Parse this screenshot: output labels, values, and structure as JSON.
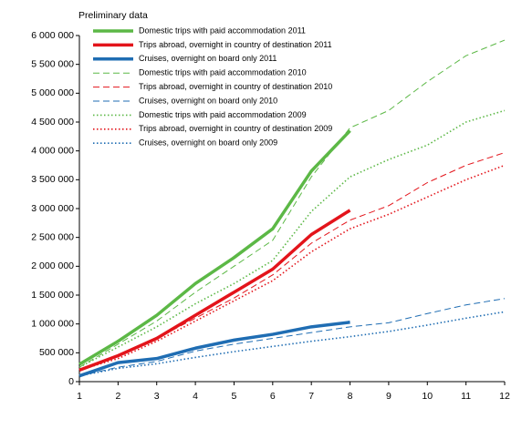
{
  "chart_data": {
    "type": "line",
    "title": "Preliminary data",
    "x": [
      1,
      2,
      3,
      4,
      5,
      6,
      7,
      8,
      9,
      10,
      11,
      12
    ],
    "xlim": [
      1,
      12
    ],
    "xticks": [
      1,
      2,
      3,
      4,
      5,
      6,
      7,
      8,
      9,
      10,
      11,
      12
    ],
    "ylim": [
      0,
      6000000
    ],
    "yticks": [
      0,
      {
        "value": 500000,
        "label": "500 000"
      },
      {
        "value": 1000000,
        "label": "1 000 000"
      },
      {
        "value": 1500000,
        "label": "1 500 000"
      },
      {
        "value": 2000000,
        "label": "2 000 000"
      },
      {
        "value": 2500000,
        "label": "2 500 000"
      },
      {
        "value": 3000000,
        "label": "3 000 000"
      },
      {
        "value": 3500000,
        "label": "3 500 000"
      },
      {
        "value": 4000000,
        "label": "4 000 000"
      },
      {
        "value": 4500000,
        "label": "4 500 000"
      },
      {
        "value": 5000000,
        "label": "5 000 000"
      },
      {
        "value": 5500000,
        "label": "5 500 000"
      },
      {
        "value": 6000000,
        "label": "6 000 000"
      }
    ],
    "grid": false,
    "legend": "upper left",
    "series": [
      {
        "name": "Domestic trips with paid accommodation 2011",
        "color": "#5cb846",
        "style": "solid",
        "values": [
          300000,
          700000,
          1150000,
          1700000,
          2150000,
          2650000,
          3650000,
          4350000,
          null,
          null,
          null,
          null
        ]
      },
      {
        "name": "Trips abroad, overnight in country of destination 2011",
        "color": "#e3141b",
        "style": "solid",
        "values": [
          200000,
          450000,
          750000,
          1150000,
          1550000,
          1950000,
          2550000,
          2970000,
          null,
          null,
          null,
          null
        ]
      },
      {
        "name": "Cruises, overnight on board only 2011",
        "color": "#1f6db3",
        "style": "solid",
        "values": [
          100000,
          330000,
          400000,
          580000,
          720000,
          820000,
          950000,
          1030000,
          null,
          null,
          null,
          null
        ]
      },
      {
        "name": "Domestic trips with paid accommodation 2010",
        "color": "#5cb846",
        "style": "dashed",
        "values": [
          250000,
          650000,
          1050000,
          1550000,
          2000000,
          2450000,
          3550000,
          4400000,
          4700000,
          5200000,
          5650000,
          5920000
        ]
      },
      {
        "name": "Trips abroad, overnight in country of destination 2010",
        "color": "#e3141b",
        "style": "dashed",
        "values": [
          200000,
          450000,
          750000,
          1100000,
          1450000,
          1850000,
          2400000,
          2800000,
          3050000,
          3450000,
          3750000,
          3970000
        ]
      },
      {
        "name": "Cruises, overnight on board only 2010",
        "color": "#1f6db3",
        "style": "dashed",
        "values": [
          100000,
          250000,
          350000,
          530000,
          650000,
          750000,
          850000,
          950000,
          1020000,
          1180000,
          1330000,
          1440000
        ]
      },
      {
        "name": "Domestic trips with paid accommodation 2009",
        "color": "#5cb846",
        "style": "dotted",
        "values": [
          250000,
          600000,
          950000,
          1350000,
          1700000,
          2100000,
          2950000,
          3550000,
          3850000,
          4100000,
          4500000,
          4700000
        ]
      },
      {
        "name": "Trips abroad, overnight in country of destination 2009",
        "color": "#e3141b",
        "style": "dotted",
        "values": [
          200000,
          400000,
          700000,
          1050000,
          1400000,
          1750000,
          2250000,
          2650000,
          2900000,
          3200000,
          3500000,
          3750000
        ]
      },
      {
        "name": "Cruises, overnight on board only 2009",
        "color": "#1f6db3",
        "style": "dotted",
        "values": [
          100000,
          230000,
          310000,
          420000,
          520000,
          610000,
          700000,
          780000,
          870000,
          980000,
          1100000,
          1210000
        ]
      }
    ]
  }
}
